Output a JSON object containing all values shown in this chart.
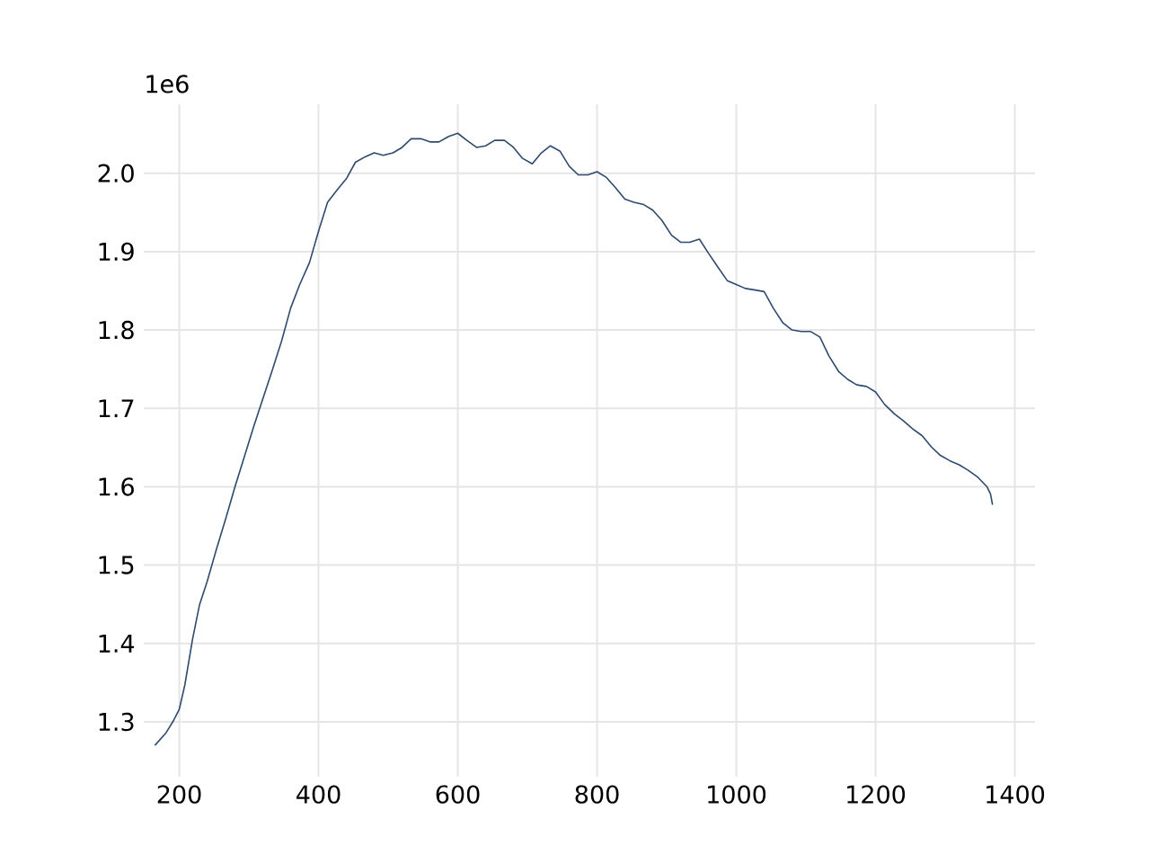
{
  "chart_data": {
    "type": "line",
    "x": [
      165,
      181,
      192,
      200,
      208,
      219,
      229,
      240,
      253,
      267,
      280,
      293,
      307,
      320,
      333,
      347,
      360,
      373,
      387,
      400,
      413,
      427,
      440,
      453,
      467,
      480,
      493,
      507,
      520,
      533,
      547,
      560,
      573,
      587,
      600,
      613,
      627,
      640,
      653,
      667,
      680,
      693,
      707,
      720,
      733,
      747,
      760,
      773,
      787,
      800,
      813,
      827,
      840,
      853,
      867,
      880,
      893,
      907,
      920,
      933,
      947,
      960,
      973,
      987,
      1000,
      1013,
      1027,
      1040,
      1053,
      1067,
      1080,
      1093,
      1107,
      1120,
      1133,
      1147,
      1160,
      1173,
      1187,
      1200,
      1213,
      1227,
      1240,
      1253,
      1267,
      1280,
      1293,
      1307,
      1320,
      1333,
      1347,
      1360,
      1365,
      1368
    ],
    "values": [
      1.27,
      1.286,
      1.302,
      1.316,
      1.347,
      1.405,
      1.449,
      1.479,
      1.519,
      1.56,
      1.6,
      1.637,
      1.677,
      1.712,
      1.747,
      1.786,
      1.828,
      1.858,
      1.886,
      1.926,
      1.963,
      1.979,
      1.993,
      2.014,
      2.021,
      2.026,
      2.023,
      2.026,
      2.033,
      2.044,
      2.044,
      2.04,
      2.04,
      2.047,
      2.051,
      2.042,
      2.033,
      2.035,
      2.042,
      2.042,
      2.033,
      2.019,
      2.012,
      2.026,
      2.035,
      2.028,
      2.009,
      1.998,
      1.998,
      2.002,
      1.995,
      1.981,
      1.967,
      1.963,
      1.96,
      1.953,
      1.94,
      1.921,
      1.912,
      1.912,
      1.916,
      1.898,
      1.881,
      1.863,
      1.858,
      1.853,
      1.851,
      1.849,
      1.828,
      1.809,
      1.8,
      1.798,
      1.798,
      1.791,
      1.767,
      1.747,
      1.737,
      1.73,
      1.728,
      1.721,
      1.705,
      1.693,
      1.684,
      1.674,
      1.665,
      1.651,
      1.64,
      1.633,
      1.628,
      1.621,
      1.612,
      1.6,
      1.591,
      1.577
    ],
    "color": "#2e4a6e",
    "xlim": [
      149,
      1429
    ],
    "ylim": [
      1.23,
      2.088
    ],
    "xticks": [
      200,
      400,
      600,
      800,
      1000,
      1200,
      1400
    ],
    "yticks": [
      1.3,
      1.4,
      1.5,
      1.6,
      1.7,
      1.8,
      1.9,
      {
        "value": 2,
        "label": "2.0"
      }
    ],
    "grid": true,
    "annotations": [
      "1e6"
    ]
  }
}
